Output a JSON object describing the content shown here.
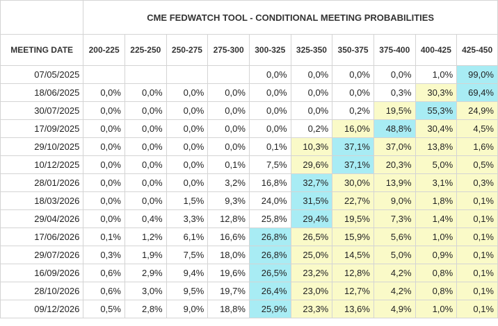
{
  "title": "CME FEDWATCH TOOL - CONDITIONAL MEETING PROBABILITIES",
  "header": {
    "meeting_date_label": "MEETING DATE",
    "ranges": [
      "200-225",
      "225-250",
      "250-275",
      "275-300",
      "300-325",
      "325-350",
      "350-375",
      "375-400",
      "400-425",
      "425-450"
    ]
  },
  "colors": {
    "yellow": "#fafac8",
    "cyan": "#a8ecf4",
    "border": "#d4d4d4"
  },
  "rows": [
    {
      "date": "07/05/2025",
      "values": [
        "",
        "",
        "",
        "",
        "0,0%",
        "0,0%",
        "0,0%",
        "0,0%",
        "1,0%",
        "99,0%"
      ],
      "shade": [
        "",
        "",
        "",
        "",
        "",
        "",
        "",
        "",
        "",
        "c"
      ]
    },
    {
      "date": "18/06/2025",
      "values": [
        "0,0%",
        "0,0%",
        "0,0%",
        "0,0%",
        "0,0%",
        "0,0%",
        "0,0%",
        "0,3%",
        "30,3%",
        "69,4%"
      ],
      "shade": [
        "",
        "",
        "",
        "",
        "",
        "",
        "",
        "",
        "y",
        "c"
      ]
    },
    {
      "date": "30/07/2025",
      "values": [
        "0,0%",
        "0,0%",
        "0,0%",
        "0,0%",
        "0,0%",
        "0,0%",
        "0,2%",
        "19,5%",
        "55,3%",
        "24,9%"
      ],
      "shade": [
        "",
        "",
        "",
        "",
        "",
        "",
        "",
        "y",
        "c",
        "y"
      ]
    },
    {
      "date": "17/09/2025",
      "values": [
        "0,0%",
        "0,0%",
        "0,0%",
        "0,0%",
        "0,0%",
        "0,2%",
        "16,0%",
        "48,8%",
        "30,4%",
        "4,5%"
      ],
      "shade": [
        "",
        "",
        "",
        "",
        "",
        "",
        "y",
        "c",
        "y",
        "y"
      ]
    },
    {
      "date": "29/10/2025",
      "values": [
        "0,0%",
        "0,0%",
        "0,0%",
        "0,0%",
        "0,1%",
        "10,3%",
        "37,1%",
        "37,0%",
        "13,8%",
        "1,6%"
      ],
      "shade": [
        "",
        "",
        "",
        "",
        "",
        "y",
        "c",
        "y",
        "y",
        "y"
      ]
    },
    {
      "date": "10/12/2025",
      "values": [
        "0,0%",
        "0,0%",
        "0,0%",
        "0,1%",
        "7,5%",
        "29,6%",
        "37,1%",
        "20,3%",
        "5,0%",
        "0,5%"
      ],
      "shade": [
        "",
        "",
        "",
        "",
        "",
        "y",
        "c",
        "y",
        "y",
        "y"
      ]
    },
    {
      "date": "28/01/2026",
      "values": [
        "0,0%",
        "0,0%",
        "0,0%",
        "3,2%",
        "16,8%",
        "32,7%",
        "30,0%",
        "13,9%",
        "3,1%",
        "0,3%"
      ],
      "shade": [
        "",
        "",
        "",
        "",
        "",
        "c",
        "y",
        "y",
        "y",
        "y"
      ]
    },
    {
      "date": "18/03/2026",
      "values": [
        "0,0%",
        "0,0%",
        "1,5%",
        "9,3%",
        "24,0%",
        "31,5%",
        "22,7%",
        "9,0%",
        "1,8%",
        "0,1%"
      ],
      "shade": [
        "",
        "",
        "",
        "",
        "",
        "c",
        "y",
        "y",
        "y",
        "y"
      ]
    },
    {
      "date": "29/04/2026",
      "values": [
        "0,0%",
        "0,4%",
        "3,3%",
        "12,8%",
        "25,8%",
        "29,4%",
        "19,5%",
        "7,3%",
        "1,4%",
        "0,1%"
      ],
      "shade": [
        "",
        "",
        "",
        "",
        "",
        "c",
        "y",
        "y",
        "y",
        "y"
      ]
    },
    {
      "date": "17/06/2026",
      "values": [
        "0,1%",
        "1,2%",
        "6,1%",
        "16,6%",
        "26,8%",
        "26,5%",
        "15,9%",
        "5,6%",
        "1,0%",
        "0,1%"
      ],
      "shade": [
        "",
        "",
        "",
        "",
        "c",
        "y",
        "y",
        "y",
        "y",
        "y"
      ]
    },
    {
      "date": "29/07/2026",
      "values": [
        "0,3%",
        "1,9%",
        "7,5%",
        "18,0%",
        "26,8%",
        "25,0%",
        "14,5%",
        "5,0%",
        "0,9%",
        "0,1%"
      ],
      "shade": [
        "",
        "",
        "",
        "",
        "c",
        "y",
        "y",
        "y",
        "y",
        "y"
      ]
    },
    {
      "date": "16/09/2026",
      "values": [
        "0,6%",
        "2,9%",
        "9,4%",
        "19,6%",
        "26,5%",
        "23,2%",
        "12,8%",
        "4,2%",
        "0,8%",
        "0,1%"
      ],
      "shade": [
        "",
        "",
        "",
        "",
        "c",
        "y",
        "y",
        "y",
        "y",
        "y"
      ]
    },
    {
      "date": "28/10/2026",
      "values": [
        "0,6%",
        "3,0%",
        "9,5%",
        "19,7%",
        "26,4%",
        "23,0%",
        "12,7%",
        "4,2%",
        "0,8%",
        "0,1%"
      ],
      "shade": [
        "",
        "",
        "",
        "",
        "c",
        "y",
        "y",
        "y",
        "y",
        "y"
      ]
    },
    {
      "date": "09/12/2026",
      "values": [
        "0,5%",
        "2,8%",
        "9,0%",
        "18,8%",
        "25,9%",
        "23,3%",
        "13,6%",
        "4,9%",
        "1,0%",
        "0,1%"
      ],
      "shade": [
        "",
        "",
        "",
        "",
        "c",
        "y",
        "y",
        "y",
        "y",
        "y"
      ]
    }
  ]
}
